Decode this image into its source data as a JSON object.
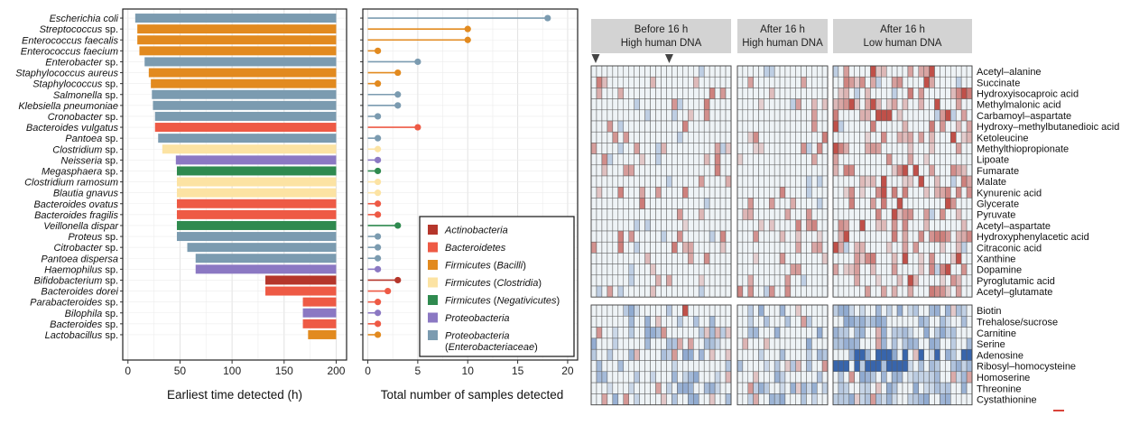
{
  "colors": {
    "Actinobacteria": "#b5362b",
    "Bacteroidetes": "#ee5a45",
    "Firmicutes_Bacilli": "#e28a1f",
    "Firmicutes_Clostridia": "#fce3a3",
    "Firmicutes_Negativicutes": "#2f8a4f",
    "Proteobacteria": "#8b78c3",
    "Enterobacteriaceae": "#7b9bb0"
  },
  "chart_data": [
    {
      "type": "bar",
      "orientation": "horizontal",
      "xlabel": "Earliest time detected (h)",
      "xlim": [
        -5,
        210
      ],
      "xticks": [
        0,
        50,
        100,
        150,
        200
      ],
      "bar_end": 200,
      "grid": true,
      "categories": [
        "Escherichia coli",
        "Streptococcus sp.",
        "Enterococcus faecalis",
        "Enterococcus faecium",
        "Enterobacter sp.",
        "Staphylococcus aureus",
        "Staphylococcus sp.",
        "Salmonella sp.",
        "Klebsiella pneumoniae",
        "Cronobacter sp.",
        "Bacteroides vulgatus",
        "Pantoea sp.",
        "Clostridium sp.",
        "Neisseria sp.",
        "Megasphaera sp.",
        "Clostridium ramosum",
        "Blautia gnavus",
        "Bacteroides ovatus",
        "Bacteroides fragilis",
        "Veillonella dispar",
        "Proteus sp.",
        "Citrobacter sp.",
        "Pantoea dispersa",
        "Haemophilus sp.",
        "Bifidobacterium sp.",
        "Bacteroides dorei",
        "Parabacteroides sp.",
        "Bilophila sp.",
        "Bacteroides sp.",
        "Lactobacillus sp."
      ],
      "values": [
        7,
        9,
        9,
        11,
        16,
        20,
        22,
        23,
        24,
        26,
        26,
        29,
        33,
        46,
        47,
        47,
        47,
        47,
        47,
        47,
        47,
        57,
        65,
        65,
        132,
        132,
        168,
        168,
        168,
        173
      ],
      "groups": [
        "Enterobacteriaceae",
        "Firmicutes_Bacilli",
        "Firmicutes_Bacilli",
        "Firmicutes_Bacilli",
        "Enterobacteriaceae",
        "Firmicutes_Bacilli",
        "Firmicutes_Bacilli",
        "Enterobacteriaceae",
        "Enterobacteriaceae",
        "Enterobacteriaceae",
        "Bacteroidetes",
        "Enterobacteriaceae",
        "Firmicutes_Clostridia",
        "Proteobacteria",
        "Firmicutes_Negativicutes",
        "Firmicutes_Clostridia",
        "Firmicutes_Clostridia",
        "Bacteroidetes",
        "Bacteroidetes",
        "Firmicutes_Negativicutes",
        "Enterobacteriaceae",
        "Enterobacteriaceae",
        "Enterobacteriaceae",
        "Proteobacteria",
        "Actinobacteria",
        "Bacteroidetes",
        "Bacteroidetes",
        "Proteobacteria",
        "Bacteroidetes",
        "Firmicutes_Bacilli"
      ],
      "name_parts": [
        [
          "Escherichia coli",
          ""
        ],
        [
          "Streptococcus",
          " sp."
        ],
        [
          "Enterococcus faecalis",
          ""
        ],
        [
          "Enterococcus faecium",
          ""
        ],
        [
          "Enterobacter",
          " sp."
        ],
        [
          "Staphylococcus aureus",
          ""
        ],
        [
          "Staphylococcus",
          " sp."
        ],
        [
          "Salmonella",
          " sp."
        ],
        [
          "Klebsiella pneumoniae",
          ""
        ],
        [
          "Cronobacter",
          " sp."
        ],
        [
          "Bacteroides vulgatus",
          ""
        ],
        [
          "Pantoea",
          " sp."
        ],
        [
          "Clostridium",
          " sp."
        ],
        [
          "Neisseria",
          " sp."
        ],
        [
          "Megasphaera",
          " sp."
        ],
        [
          "Clostridium ramosum",
          ""
        ],
        [
          "Blautia gnavus",
          ""
        ],
        [
          "Bacteroides ovatus",
          ""
        ],
        [
          "Bacteroides fragilis",
          ""
        ],
        [
          "Veillonella dispar",
          ""
        ],
        [
          "Proteus",
          " sp."
        ],
        [
          "Citrobacter",
          " sp."
        ],
        [
          "Pantoea dispersa",
          ""
        ],
        [
          "Haemophilus",
          " sp."
        ],
        [
          "Bifidobacterium",
          " sp."
        ],
        [
          "Bacteroides dorei",
          ""
        ],
        [
          "Parabacteroides",
          " sp."
        ],
        [
          "Bilophila",
          " sp."
        ],
        [
          "Bacteroides",
          " sp."
        ],
        [
          "Lactobacillus",
          " sp."
        ]
      ]
    },
    {
      "type": "lollipop",
      "xlabel": "Total number of samples detected",
      "xlim": [
        -0.5,
        21
      ],
      "xticks": [
        0,
        5,
        10,
        15,
        20
      ],
      "grid": true,
      "values": [
        18,
        10,
        10,
        1,
        5,
        3,
        1,
        3,
        3,
        1,
        5,
        1,
        1,
        1,
        1,
        1,
        1,
        1,
        1,
        3,
        1,
        1,
        1,
        1,
        3,
        2,
        1,
        1,
        1,
        1
      ],
      "legend": {
        "position": "bottom-right",
        "entries": [
          {
            "group": "Actinobacteria",
            "parts": [
              [
                "Actinobacteria",
                true
              ]
            ]
          },
          {
            "group": "Bacteroidetes",
            "parts": [
              [
                "Bacteroidetes",
                true
              ]
            ]
          },
          {
            "group": "Firmicutes_Bacilli",
            "parts": [
              [
                "Firmicutes",
                true
              ],
              [
                " (",
                false
              ],
              [
                "Bacilli",
                true
              ],
              [
                ")",
                false
              ]
            ]
          },
          {
            "group": "Firmicutes_Clostridia",
            "parts": [
              [
                "Firmicutes",
                true
              ],
              [
                " (",
                false
              ],
              [
                "Clostridia",
                true
              ],
              [
                ")",
                false
              ]
            ]
          },
          {
            "group": "Firmicutes_Negativicutes",
            "parts": [
              [
                "Firmicutes",
                true
              ],
              [
                " (",
                false
              ],
              [
                "Negativicutes",
                true
              ],
              [
                ")",
                false
              ]
            ]
          },
          {
            "group": "Proteobacteria",
            "parts": [
              [
                "Proteobacteria",
                true
              ]
            ]
          },
          {
            "group": "Enterobacteriaceae",
            "parts": [
              [
                "Proteobacteria",
                true
              ]
            ],
            "parts2": [
              [
                "(",
                false
              ],
              [
                "Enterobacteriaceae",
                true
              ],
              [
                ")",
                false
              ]
            ]
          }
        ]
      }
    },
    {
      "type": "heatmap",
      "panels": [
        {
          "title": [
            "Before 16 h",
            "High human DNA"
          ],
          "columns": 26
        },
        {
          "title": [
            "After 16 h",
            "High human DNA"
          ],
          "columns": 17
        },
        {
          "title": [
            "After 16 h",
            "Low human DNA"
          ],
          "columns": 26
        }
      ],
      "marker_columns": [
        0,
        14
      ],
      "color_scale": {
        "low": "#2e5ea8",
        "mid": "#eef3f6",
        "high": "#b8332b"
      },
      "upper_rows": [
        "Acetyl–alanine",
        "Succinate",
        "Hydroxyisocaproic acid",
        "Methylmalonic acid",
        "Carbamoyl–aspartate",
        "Hydroxy–methylbutanedioic acid",
        "Ketoleucine",
        "Methylthiopropionate",
        "Lipoate",
        "Fumarate",
        "Malate",
        "Kynurenic acid",
        "Glycerate",
        "Pyruvate",
        "Acetyl–aspartate",
        "Hydroxyphenylacetic acid",
        "Citraconic acid",
        "Xanthine",
        "Dopamine",
        "Pyroglutamic acid",
        "Acetyl–glutamate"
      ],
      "lower_rows": [
        "Biotin",
        "Trehalose/sucrose",
        "Carnitine",
        "Serine",
        "Adenosine",
        "Ribosyl–homocysteine",
        "Homoserine",
        "Threonine",
        "Cystathionine"
      ],
      "approximate": true
    }
  ]
}
